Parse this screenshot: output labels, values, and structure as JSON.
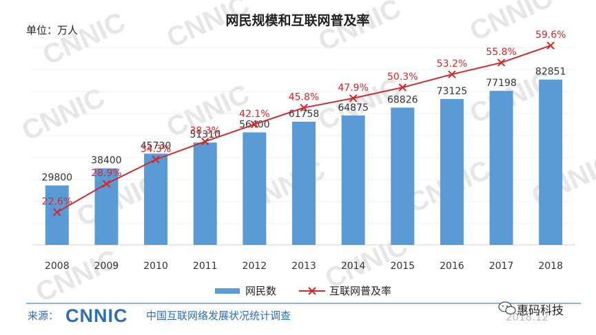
{
  "title": "网民规模和互联网普及率",
  "unit_label": "单位：万人",
  "legend": {
    "bar": "网民数",
    "line": "互联网普及率"
  },
  "footer": {
    "source_prefix": "来源：",
    "logo": "CNNIC",
    "source_name": "中国互联网络发展状况统计调查",
    "date": "2018.12",
    "badge": "惠码科技"
  },
  "watermark": "CNNIC",
  "colors": {
    "bar": "#5b9bd5",
    "line": "#d62728",
    "footer_blue": "#2f6db5",
    "rule": "#5b9bd5"
  },
  "chart_data": {
    "type": "bar",
    "categories": [
      "2008",
      "2009",
      "2010",
      "2011",
      "2012",
      "2013",
      "2014",
      "2015",
      "2016",
      "2017",
      "2018"
    ],
    "series": [
      {
        "name": "网民数",
        "type": "bar",
        "values": [
          29800,
          38400,
          45730,
          51310,
          56400,
          61758,
          64875,
          68826,
          73125,
          77198,
          82851
        ]
      },
      {
        "name": "互联网普及率",
        "type": "line",
        "values": [
          22.6,
          28.9,
          34.3,
          38.3,
          42.1,
          45.8,
          47.9,
          50.3,
          53.2,
          55.8,
          59.6
        ],
        "labels": [
          "22.6%",
          "28.9%",
          "34.3%",
          "38.3%",
          "42.1%",
          "45.8%",
          "47.9%",
          "50.3%",
          "53.2%",
          "55.8%",
          "59.6%"
        ]
      }
    ],
    "title": "网民规模和互联网普及率",
    "ylabel": "单位：万人",
    "grid": true,
    "legend_position": "bottom"
  }
}
